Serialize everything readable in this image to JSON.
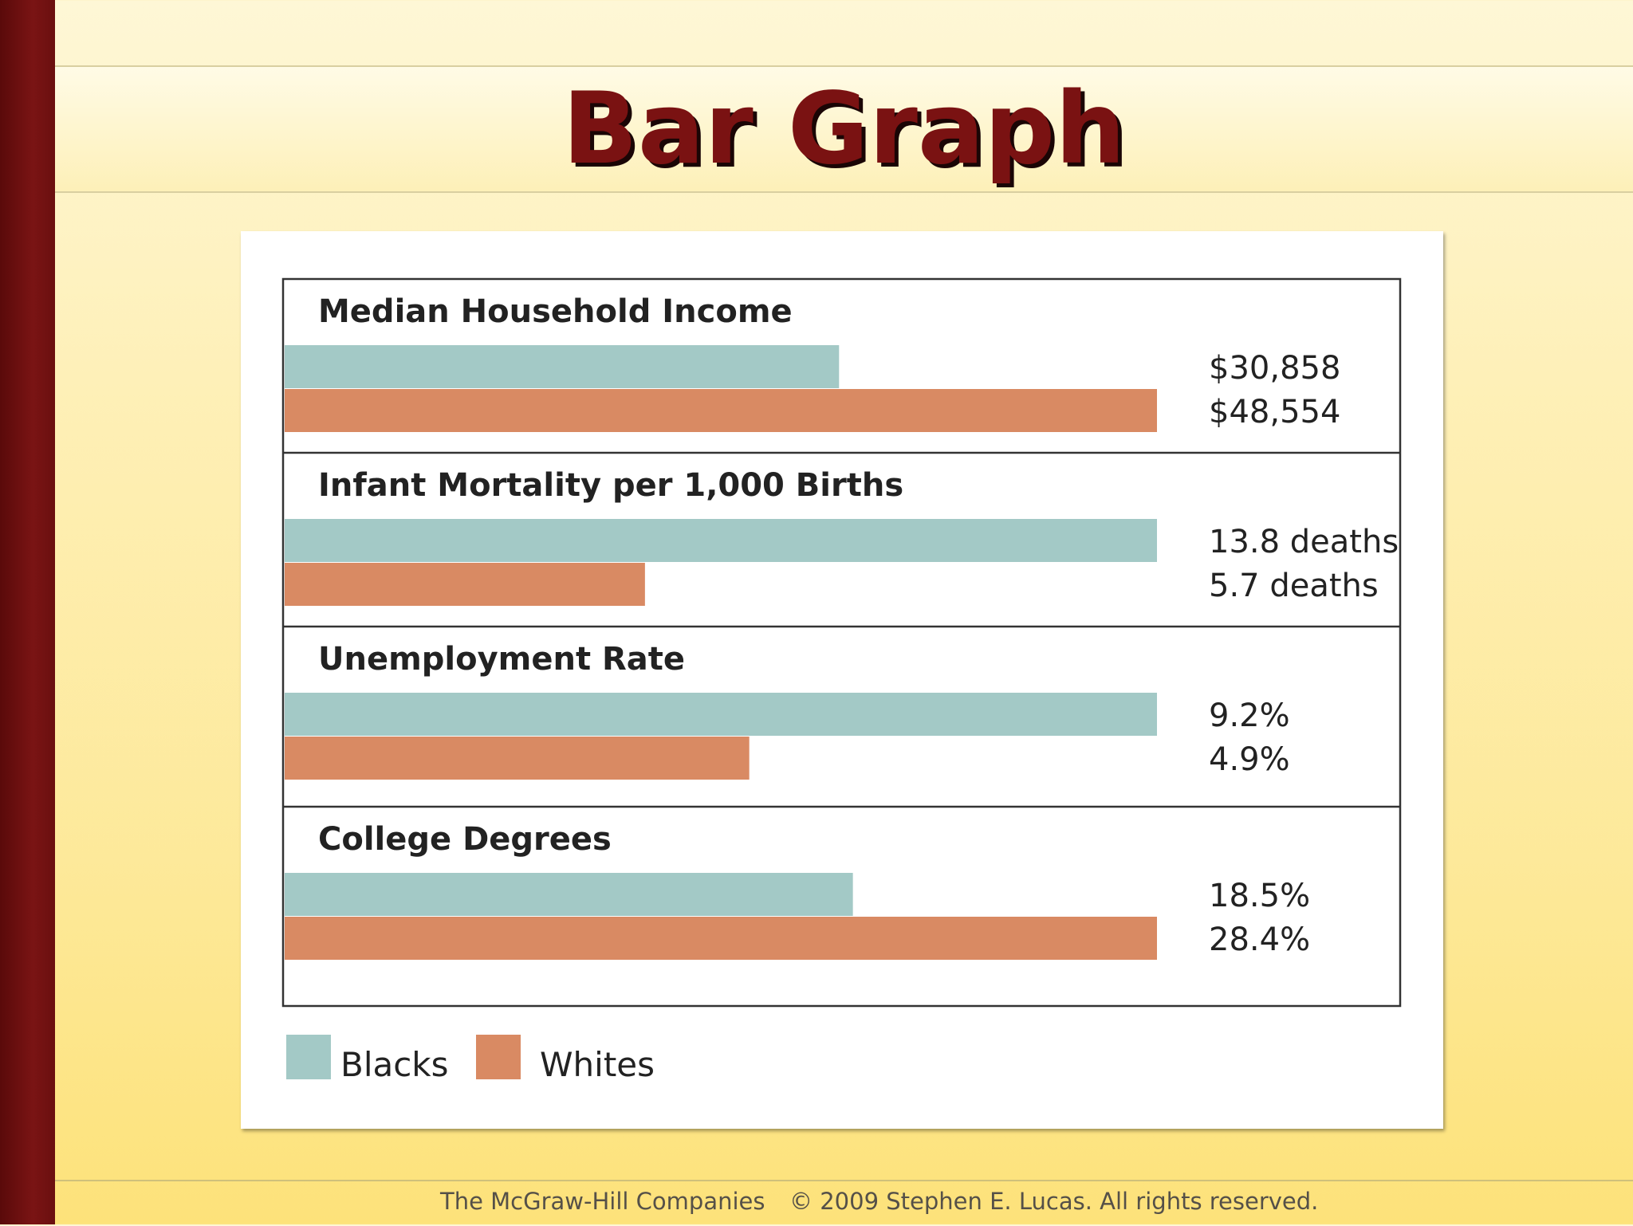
{
  "slide": {
    "title": "Bar Graph",
    "footer_left": "The McGraw-Hill Companies",
    "footer_right": "© 2009 Stephen E. Lucas. All rights reserved."
  },
  "colors": {
    "blacks": "#a3c9c6",
    "whites": "#d98a63",
    "panel_border": "#333333",
    "label_text": "#222222"
  },
  "chart_data": {
    "type": "bar",
    "orientation": "horizontal",
    "legend": {
      "placement": "bottom-left",
      "entries": [
        {
          "name": "Blacks",
          "color": "#a3c9c6"
        },
        {
          "name": "Whites",
          "color": "#d98a63"
        }
      ]
    },
    "panels": [
      {
        "title": "Median Household Income",
        "max": 48554,
        "bars": [
          {
            "series": "Blacks",
            "value": 30858,
            "label": "$30,858"
          },
          {
            "series": "Whites",
            "value": 48554,
            "label": "$48,554"
          }
        ]
      },
      {
        "title": "Infant Mortality per 1,000 Births",
        "max": 13.8,
        "bars": [
          {
            "series": "Blacks",
            "value": 13.8,
            "label": "13.8 deaths"
          },
          {
            "series": "Whites",
            "value": 5.7,
            "label": "5.7 deaths"
          }
        ]
      },
      {
        "title": "Unemployment Rate",
        "max": 9.2,
        "bars": [
          {
            "series": "Blacks",
            "value": 9.2,
            "label": "9.2%"
          },
          {
            "series": "Whites",
            "value": 4.9,
            "label": "4.9%"
          }
        ]
      },
      {
        "title": "College Degrees",
        "max": 28.4,
        "bars": [
          {
            "series": "Blacks",
            "value": 18.5,
            "label": "18.5%"
          },
          {
            "series": "Whites",
            "value": 28.4,
            "label": "28.4%"
          }
        ]
      }
    ]
  }
}
